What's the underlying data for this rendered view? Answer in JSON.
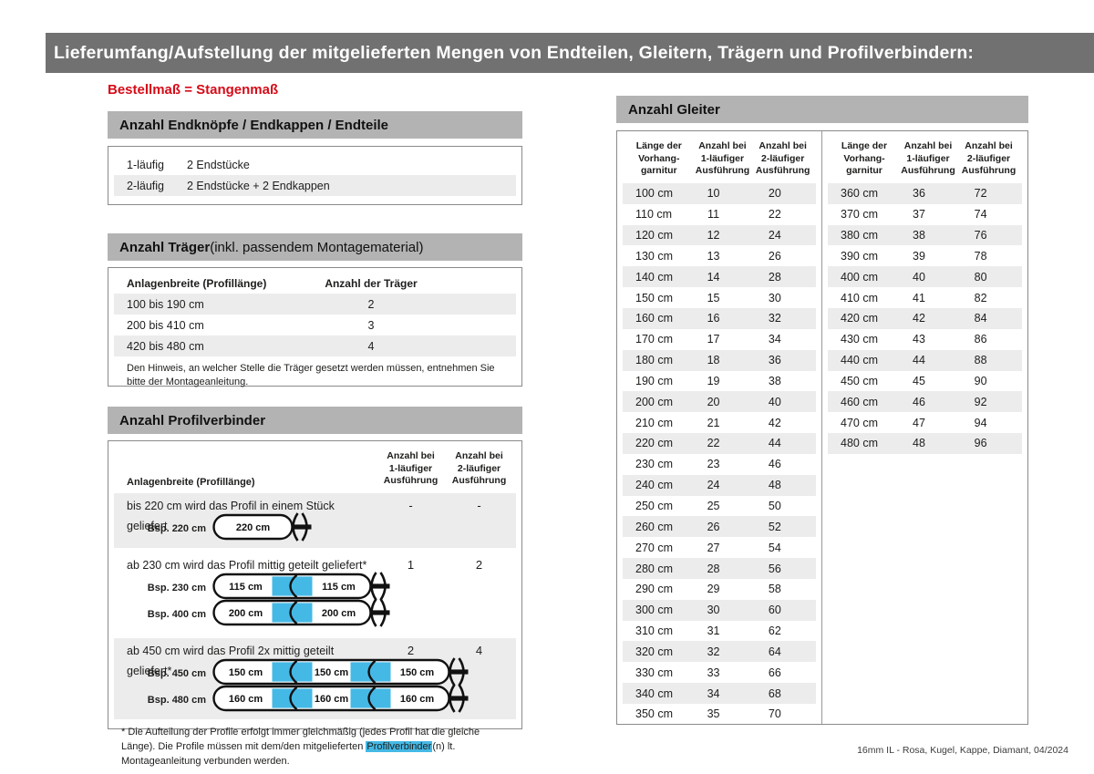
{
  "page": {
    "title": "Lieferumfang/Aufstellung der mitgelieferten Mengen von Endteilen, Gleitern, Trägern und Profilverbindern:",
    "subtitle": "Bestellmaß = Stangenmaß",
    "footer": "16mm IL - Rosa, Kugel, Kappe, Diamant, 04/2024"
  },
  "colors": {
    "header_bar": "#717171",
    "section_bar": "#b3b3b3",
    "row_shade": "#ececec",
    "accent_red": "#d60b18",
    "connector_blue": "#45b9e6",
    "rod_outline": "#111111"
  },
  "endteile": {
    "heading": "Anzahl Endknöpfe / Endkappen / Endteile",
    "rows": [
      {
        "label": "1-läufig",
        "value": "2 Endstücke"
      },
      {
        "label": "2-läufig",
        "value": "2 Endstücke + 2 Endkappen"
      }
    ]
  },
  "traeger": {
    "heading_bold": "Anzahl Träger",
    "heading_rest": " (inkl. passendem Montagematerial)",
    "col_headers": [
      "Anlagenbreite (Profillänge)",
      "Anzahl der Träger"
    ],
    "rows": [
      {
        "range": "100 bis 190 cm",
        "count": "2"
      },
      {
        "range": "200 bis 410 cm",
        "count": "3"
      },
      {
        "range": "420 bis 480 cm",
        "count": "4"
      }
    ],
    "note": "Den Hinweis, an welcher Stelle die Träger gesetzt werden müssen, entnehmen Sie bitte der Montageanleitung."
  },
  "profilverbinder": {
    "heading": "Anzahl Profilverbinder",
    "col_headers": {
      "col1": "Anlagenbreite (Profillänge)",
      "col2": "Anzahl bei\n1-läufiger\nAusführung",
      "col3": "Anzahl bei\n2-läufiger\nAusführung"
    },
    "rows": [
      {
        "text": "bis 220 cm wird das Profil in einem Stück geliefert",
        "count1": "-",
        "count2": "-",
        "shaded": true,
        "examples": [
          {
            "label": "Bsp. 220 cm",
            "segments": [
              "220 cm"
            ]
          }
        ]
      },
      {
        "text": "ab 230 cm wird das Profil mittig geteilt geliefert*",
        "count1": "1",
        "count2": "2",
        "shaded": false,
        "examples": [
          {
            "label": "Bsp. 230 cm",
            "segments": [
              "115 cm",
              "115 cm"
            ]
          },
          {
            "label": "Bsp. 400 cm",
            "segments": [
              "200 cm",
              "200 cm"
            ]
          }
        ]
      },
      {
        "text": "ab 450 cm wird das Profil 2x mittig geteilt geliefert*",
        "count1": "2",
        "count2": "4",
        "shaded": true,
        "examples": [
          {
            "label": "Bsp. 450 cm",
            "segments": [
              "150 cm",
              "150 cm",
              "150 cm"
            ]
          },
          {
            "label": "Bsp. 480 cm",
            "segments": [
              "160 cm",
              "160 cm",
              "160 cm"
            ]
          }
        ]
      }
    ],
    "footnote": {
      "before": "* Die Aufteilung der Profile erfolgt immer gleichmäßig (jedes Profil hat die gleiche Länge). Die Profile müssen mit dem/den mitgelieferten ",
      "highlight": "Profilverbinder",
      "after": "(n) lt. Montageanleitung verbunden werden."
    }
  },
  "gleiter": {
    "heading": "Anzahl Gleiter",
    "col_headers": {
      "col1": "Länge der\nVorhang-\ngarnitur",
      "col2": "Anzahl bei\n1-läufiger\nAusführung",
      "col3": "Anzahl bei\n2-läufiger\nAusführung"
    },
    "left_rows": [
      [
        "100 cm",
        "10",
        "20"
      ],
      [
        "110 cm",
        "11",
        "22"
      ],
      [
        "120 cm",
        "12",
        "24"
      ],
      [
        "130 cm",
        "13",
        "26"
      ],
      [
        "140 cm",
        "14",
        "28"
      ],
      [
        "150 cm",
        "15",
        "30"
      ],
      [
        "160 cm",
        "16",
        "32"
      ],
      [
        "170 cm",
        "17",
        "34"
      ],
      [
        "180 cm",
        "18",
        "36"
      ],
      [
        "190 cm",
        "19",
        "38"
      ],
      [
        "200 cm",
        "20",
        "40"
      ],
      [
        "210 cm",
        "21",
        "42"
      ],
      [
        "220 cm",
        "22",
        "44"
      ],
      [
        "230 cm",
        "23",
        "46"
      ],
      [
        "240 cm",
        "24",
        "48"
      ],
      [
        "250 cm",
        "25",
        "50"
      ],
      [
        "260 cm",
        "26",
        "52"
      ],
      [
        "270 cm",
        "27",
        "54"
      ],
      [
        "280 cm",
        "28",
        "56"
      ],
      [
        "290 cm",
        "29",
        "58"
      ],
      [
        "300 cm",
        "30",
        "60"
      ],
      [
        "310 cm",
        "31",
        "62"
      ],
      [
        "320 cm",
        "32",
        "64"
      ],
      [
        "330 cm",
        "33",
        "66"
      ],
      [
        "340 cm",
        "34",
        "68"
      ],
      [
        "350 cm",
        "35",
        "70"
      ]
    ],
    "right_rows": [
      [
        "360 cm",
        "36",
        "72"
      ],
      [
        "370 cm",
        "37",
        "74"
      ],
      [
        "380 cm",
        "38",
        "76"
      ],
      [
        "390 cm",
        "39",
        "78"
      ],
      [
        "400 cm",
        "40",
        "80"
      ],
      [
        "410 cm",
        "41",
        "82"
      ],
      [
        "420 cm",
        "42",
        "84"
      ],
      [
        "430 cm",
        "43",
        "86"
      ],
      [
        "440 cm",
        "44",
        "88"
      ],
      [
        "450 cm",
        "45",
        "90"
      ],
      [
        "460 cm",
        "46",
        "92"
      ],
      [
        "470 cm",
        "47",
        "94"
      ],
      [
        "480 cm",
        "48",
        "96"
      ]
    ]
  }
}
